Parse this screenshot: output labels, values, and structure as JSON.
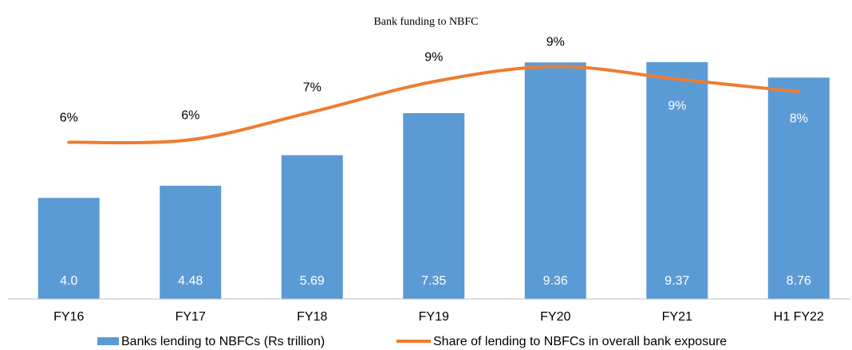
{
  "chart_data": {
    "type": "bar",
    "title": "Bank funding to NBFC",
    "categories": [
      "FY16",
      "FY17",
      "FY18",
      "FY19",
      "FY20",
      "FY21",
      "H1 FY22"
    ],
    "series": [
      {
        "name": "Banks lending to NBFCs (Rs trillion)",
        "type": "bar",
        "color": "#5b9bd5",
        "values": [
          4.0,
          4.48,
          5.69,
          7.35,
          9.36,
          9.37,
          8.76
        ],
        "value_labels": [
          "4.0",
          "4.48",
          "5.69",
          "7.35",
          "9.36",
          "9.37",
          "8.76"
        ]
      },
      {
        "name": "Share of lending to NBFCs in overall bank exposure",
        "type": "line",
        "axis": "y2",
        "color": "#ed7d31",
        "values": [
          6.2,
          6.3,
          7.4,
          8.6,
          9.2,
          8.7,
          8.2
        ],
        "value_labels": [
          "6%",
          "6%",
          "7%",
          "9%",
          "9%",
          "9%",
          "8%"
        ]
      }
    ],
    "ylim": [
      0,
      10
    ],
    "y2lim": [
      0,
      10
    ],
    "legend": "bottom"
  }
}
